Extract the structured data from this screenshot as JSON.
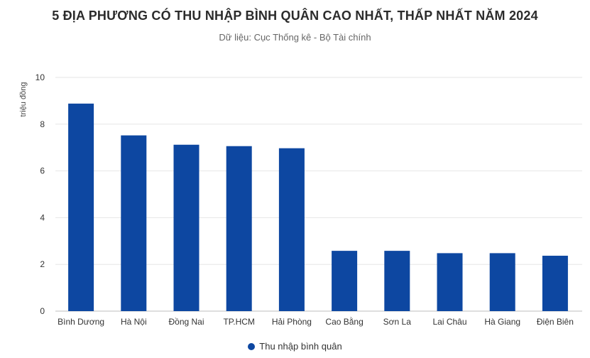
{
  "chart_data": {
    "type": "bar",
    "title": "5 ĐỊA PHƯƠNG CÓ THU NHẬP BÌNH QUÂN CAO NHẤT, THẤP NHẤT NĂM 2024",
    "subtitle": "Dữ liệu: Cục Thống kê - Bộ Tài chính",
    "ylabel": "triệu đồng",
    "xlabel": "",
    "ylim": [
      0,
      10
    ],
    "yticks": [
      0,
      2,
      4,
      6,
      8,
      10
    ],
    "categories": [
      "Bình Dương",
      "Hà Nội",
      "Đồng Nai",
      "TP.HCM",
      "Hải Phòng",
      "Cao Bằng",
      "Sơn La",
      "Lai Châu",
      "Hà Giang",
      "Điện Biên"
    ],
    "series": [
      {
        "name": "Thu nhập bình quân",
        "color": "#0d47a1",
        "values": [
          8.88,
          7.52,
          7.12,
          7.06,
          6.97,
          2.58,
          2.58,
          2.48,
          2.48,
          2.37
        ]
      }
    ],
    "grid": true,
    "legend": "bottom-center"
  }
}
